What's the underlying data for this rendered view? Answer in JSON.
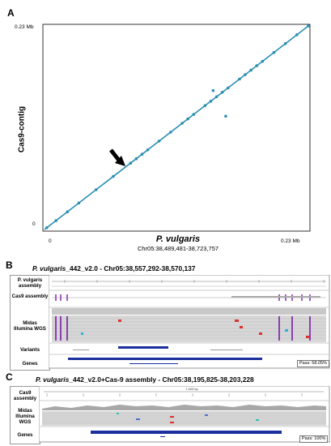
{
  "panels": {
    "A": {
      "letter": "A",
      "y_top_label": "0.23 Mb",
      "y_zero_label": "0",
      "x_zero_label": "0",
      "x_max_label": "0.23 Mb",
      "ylabel": "Cas9-contig",
      "xlabel": "P. vulgaris",
      "xsub": "Chr05:38,489,481-38,723,757"
    },
    "B": {
      "letter": "B",
      "title_species": "P. vulgaris",
      "title_rest": "_442_v2.0 - Chr05:38,557,292-38,570,137",
      "rows": [
        "P. vulgaris assembly",
        "Cas9 assembly",
        "Midas Illumina WGS",
        "Variants",
        "Genes"
      ],
      "pass": "Pass: 58.05%"
    },
    "C": {
      "letter": "C",
      "title_species": "P. vulgaris",
      "title_rest": "_442_v2.0+Cas-9 assembly - Chr05:38,195,825-38,203,228",
      "rows": [
        "Cas9 assembly",
        "Midas Illumina WGS",
        "Genes"
      ],
      "scale": "7,403 bp",
      "pass": "Pass: 100%"
    }
  },
  "chart_data": {
    "type": "scatter",
    "title": "",
    "xlabel": "P. vulgaris",
    "ylabel": "Cas9-contig",
    "xlim": [
      0,
      0.23
    ],
    "ylim": [
      0,
      0.23
    ],
    "units": "Mb",
    "series": [
      {
        "x": [
          0.002,
          0.01,
          0.02,
          0.03,
          0.045,
          0.06,
          0.075,
          0.08,
          0.085,
          0.09,
          0.1,
          0.11,
          0.12,
          0.125,
          0.13,
          0.14,
          0.145,
          0.15,
          0.155,
          0.16,
          0.17,
          0.175,
          0.18,
          0.185,
          0.19,
          0.2,
          0.21,
          0.22,
          0.23,
          0.147,
          0.158
        ],
        "y": [
          0.002,
          0.01,
          0.02,
          0.03,
          0.045,
          0.06,
          0.075,
          0.08,
          0.085,
          0.09,
          0.1,
          0.11,
          0.12,
          0.125,
          0.13,
          0.14,
          0.145,
          0.15,
          0.155,
          0.16,
          0.17,
          0.175,
          0.18,
          0.185,
          0.19,
          0.2,
          0.21,
          0.22,
          0.23,
          0.157,
          0.128
        ]
      }
    ]
  }
}
